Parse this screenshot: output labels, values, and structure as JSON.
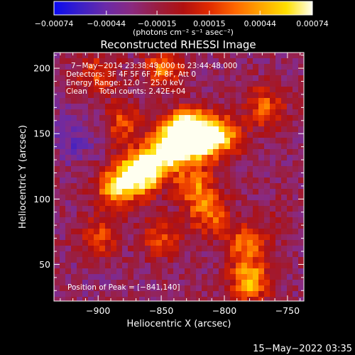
{
  "chart_data": {
    "type": "heatmap",
    "title": "Reconstructed RHESSI Image",
    "xlabel": "Heliocentric X (arcsec)",
    "ylabel": "Heliocentric Y (arcsec)",
    "xlim": [
      -935,
      -737
    ],
    "ylim": [
      22,
      212
    ],
    "x_ticks": [
      {
        "value": -900,
        "label": "−900"
      },
      {
        "value": -850,
        "label": "−850"
      },
      {
        "value": -800,
        "label": "−800"
      },
      {
        "value": -750,
        "label": "−750"
      }
    ],
    "y_ticks": [
      {
        "value": 50,
        "label": "50"
      },
      {
        "value": 100,
        "label": "100"
      },
      {
        "value": 150,
        "label": "150"
      },
      {
        "value": 200,
        "label": "200"
      }
    ],
    "annotations": [
      "7−May−2014 23:38:48.000 to 23:44:48.000",
      "Detectors: 3F 4F 5F 6F 7F 8F, Att 0",
      "Energy Range: 12.0 − 25.0 keV",
      "Clean     Total counts: 2.42E+04"
    ],
    "peak_label": "Position of Peak = [−841,140]",
    "peak_position": [
      -841,
      140
    ],
    "grid": false,
    "colorbar": {
      "min": -0.00074,
      "max": 0.00074,
      "unit": "(photons cm⁻² s⁻¹ asec⁻²)",
      "ticks": [
        {
          "value": -0.00074,
          "label": "−0.00074"
        },
        {
          "value": -0.00044,
          "label": "−0.00044"
        },
        {
          "value": -0.00015,
          "label": "−0.00015"
        },
        {
          "value": 0.00015,
          "label": "0.00015"
        },
        {
          "value": 0.00044,
          "label": "0.00044"
        },
        {
          "value": 0.00074,
          "label": "0.00074"
        }
      ],
      "colors": [
        "#0a0af0",
        "#3a20c8",
        "#6a2aa8",
        "#8a2a80",
        "#9a1e40",
        "#b01010",
        "#e02a00",
        "#ff6600",
        "#ffa500",
        "#ffe000",
        "#fffff0"
      ]
    },
    "sources": [
      {
        "x": -841,
        "y": 140,
        "flux": 0.00074
      },
      {
        "x": -822,
        "y": 147,
        "flux": 0.00066
      },
      {
        "x": -830,
        "y": 152,
        "flux": 0.00064
      },
      {
        "x": -871,
        "y": 118,
        "flux": 0.0006
      },
      {
        "x": -887,
        "y": 108,
        "flux": 0.0004
      },
      {
        "x": -803,
        "y": 148,
        "flux": 0.00052
      },
      {
        "x": -858,
        "y": 125,
        "flux": 0.0005
      },
      {
        "x": -780,
        "y": 37,
        "flux": 0.0005
      },
      {
        "x": -783,
        "y": 66,
        "flux": 0.0003
      },
      {
        "x": -823,
        "y": 110,
        "flux": 0.00032
      },
      {
        "x": -812,
        "y": 88,
        "flux": 0.00028
      },
      {
        "x": -880,
        "y": 158,
        "flux": 0.00022
      },
      {
        "x": -900,
        "y": 195,
        "flux": 0.00018
      },
      {
        "x": -848,
        "y": 200,
        "flux": 0.0003
      },
      {
        "x": -768,
        "y": 170,
        "flux": 0.00026
      },
      {
        "x": -900,
        "y": 70,
        "flux": 0.0002
      },
      {
        "x": -850,
        "y": 70,
        "flux": 0.00018
      }
    ],
    "troughs": [
      {
        "x": -918,
        "y": 148,
        "flux": -0.00046
      },
      {
        "x": -905,
        "y": 48,
        "flux": -0.00028
      },
      {
        "x": -790,
        "y": 112,
        "flux": -0.0002
      },
      {
        "x": -760,
        "y": 120,
        "flux": -0.00022
      },
      {
        "x": -760,
        "y": 85,
        "flux": -0.00014
      }
    ]
  },
  "footer": {
    "timestamp": "15−May−2022 03:35"
  }
}
